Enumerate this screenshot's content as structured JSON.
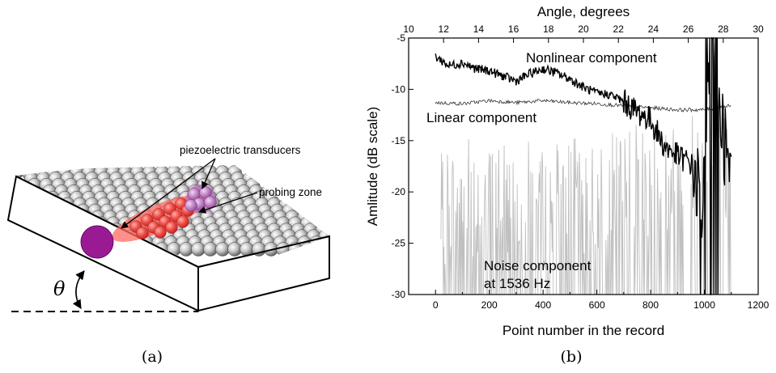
{
  "panel_a": {
    "caption": "(a)",
    "label_transducers": "piezoelectric transducers",
    "label_probing": "probing zone",
    "label_theta": "θ"
  },
  "panel_b": {
    "caption": "(b)"
  },
  "chart_data": {
    "type": "line",
    "xlabel": "Point number in the record",
    "ylabel": "Amlitude (dB scale)",
    "top_xlabel": "Angle, degrees",
    "xlim": [
      -100,
      1200
    ],
    "ylim": [
      -30,
      -5
    ],
    "top_xlim": [
      10,
      30
    ],
    "xticks": [
      0,
      200,
      400,
      600,
      800,
      1000,
      1200
    ],
    "yticks": [
      -5,
      -10,
      -15,
      -20,
      -25,
      -30
    ],
    "top_xticks": [
      10,
      12,
      14,
      16,
      18,
      20,
      22,
      24,
      26,
      28,
      30
    ],
    "grid": false,
    "series": [
      {
        "name": "Nonlinear component",
        "color": "#000000",
        "x": [
          0,
          50,
          100,
          150,
          200,
          250,
          300,
          350,
          400,
          450,
          500,
          550,
          600,
          650,
          700,
          750,
          800,
          850,
          900,
          950,
          980,
          1000,
          1020,
          1040,
          1060,
          1080,
          1100
        ],
        "y": [
          -6.8,
          -7.7,
          -7.4,
          -8.0,
          -8.2,
          -8.7,
          -9.2,
          -8.5,
          -8.0,
          -8.4,
          -9.0,
          -9.8,
          -10.4,
          -10.5,
          -11.2,
          -12.2,
          -13.0,
          -15.5,
          -16.5,
          -17.2,
          -20.0,
          -21.0,
          -5.0,
          -5.0,
          -12.0,
          -16.0,
          -20.0
        ]
      },
      {
        "name": "Linear component",
        "color": "#333333",
        "x": [
          0,
          100,
          200,
          300,
          400,
          500,
          600,
          700,
          800,
          900,
          1000,
          1050,
          1100
        ],
        "y": [
          -11.3,
          -11.4,
          -11.1,
          -11.3,
          -11.1,
          -11.3,
          -11.4,
          -11.6,
          -11.8,
          -12.0,
          -12.0,
          -11.8,
          -11.6
        ]
      },
      {
        "name": "Noise component\nat 1536 Hz",
        "color": "#c0c0c0",
        "x": [
          20,
          100,
          200,
          300,
          400,
          500,
          600,
          700,
          800,
          900,
          1000,
          1100
        ],
        "y": [
          -24.0,
          -21.5,
          -23.0,
          -22.0,
          -23.5,
          -22.5,
          -22.0,
          -21.5,
          -20.5,
          -21.0,
          -19.0,
          -20.0
        ]
      }
    ],
    "annotations": [
      "Nonlinear component",
      "Linear component",
      "Noise component",
      "at 1536 Hz"
    ]
  }
}
